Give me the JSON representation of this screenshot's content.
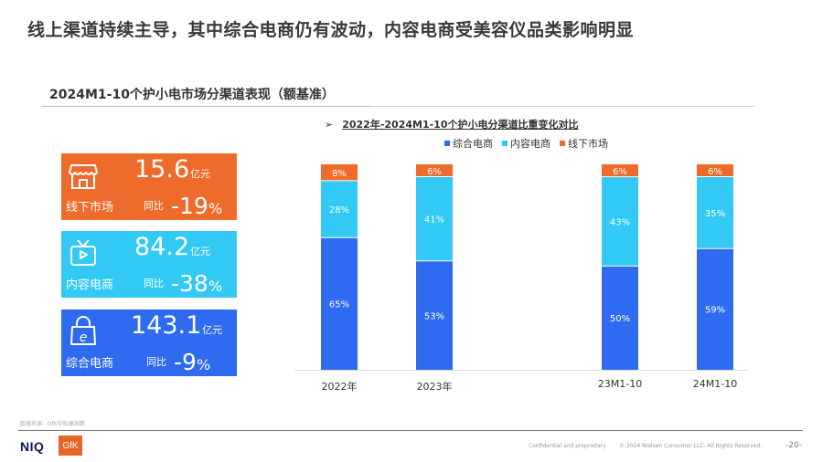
{
  "page": {
    "title": "线上渠道持续主导，其中综合电商仍有波动，内容电商受美容仪品类影响明显",
    "section_title": "2024M1-10个护小电市场分渠道表现（额基准）"
  },
  "kpi_cards": [
    {
      "icon": "storefront-icon",
      "value": "15.6",
      "unit": "亿元",
      "label": "线下市场",
      "yoy_label": "同比",
      "yoy_value": "-19",
      "yoy_unit": "%",
      "color": "#EE6B2B"
    },
    {
      "icon": "tv-play-icon",
      "value": "84.2",
      "unit": "亿元",
      "label": "内容电商",
      "yoy_label": "同比",
      "yoy_value": "-38",
      "yoy_unit": "%",
      "color": "#33C9F5"
    },
    {
      "icon": "shopping-bag-e-icon",
      "value": "143.1",
      "unit": "亿元",
      "label": "综合电商",
      "yoy_label": "同比",
      "yoy_value": "-9",
      "yoy_unit": "%",
      "color": "#2E6BF0"
    }
  ],
  "chart_heading": {
    "arrow": "➢",
    "text": "2022年-2024M1-10个护小电分渠道比重变化对比"
  },
  "chart_data": {
    "type": "bar",
    "stacked": true,
    "title": "2022年-2024M1-10个护小电分渠道比重变化对比",
    "categories": [
      "2022年",
      "2023年",
      "23M1-10",
      "24M1-10"
    ],
    "series": [
      {
        "name": "综合电商",
        "color": "#2E6BF0",
        "values": [
          65,
          53,
          50,
          59
        ]
      },
      {
        "name": "内容电商",
        "color": "#33C9F5",
        "values": [
          28,
          41,
          43,
          35
        ]
      },
      {
        "name": "线下市场",
        "color": "#EE6B2B",
        "values": [
          8,
          6,
          6,
          6
        ]
      }
    ],
    "value_suffix": "%",
    "ylim": [
      0,
      100
    ],
    "legend_position": "top",
    "grid": false,
    "xlabel": "",
    "ylabel": ""
  },
  "footer": {
    "source": "数据来源：GfK中怡康测算",
    "logo_niq": "NIQ",
    "logo_gfk": "GfK",
    "confidential": "Confidential and proprietary",
    "copyright": "© 2024 Nielsen Consumer LLC. All Rights Reserved.",
    "page_number": "-20-"
  }
}
